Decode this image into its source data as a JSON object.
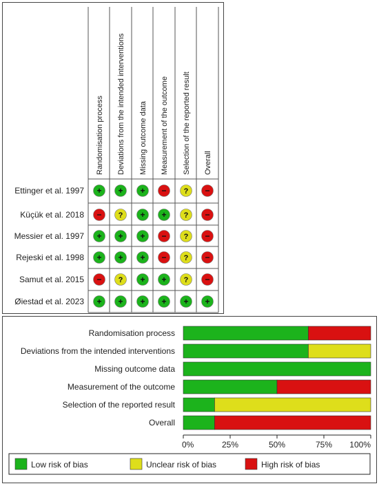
{
  "chart_data": [
    {
      "type": "table",
      "title": "",
      "domains": [
        "Randomisation process",
        "Deviations from the intended interventions",
        "Missing outcome data",
        "Measurement of the outcome",
        "Selection of the reported result",
        "Overall"
      ],
      "studies": [
        {
          "name": "Ettinger et al. 1997",
          "judgements": [
            "low",
            "low",
            "low",
            "high",
            "unclear",
            "high"
          ]
        },
        {
          "name": "Küçük et al. 2018",
          "judgements": [
            "high",
            "unclear",
            "low",
            "low",
            "unclear",
            "high"
          ]
        },
        {
          "name": "Messier et al. 1997",
          "judgements": [
            "low",
            "low",
            "low",
            "high",
            "unclear",
            "high"
          ]
        },
        {
          "name": "Rejeski et al. 1998",
          "judgements": [
            "low",
            "low",
            "low",
            "high",
            "unclear",
            "high"
          ]
        },
        {
          "name": "Samut et al. 2015",
          "judgements": [
            "high",
            "unclear",
            "low",
            "low",
            "unclear",
            "high"
          ]
        },
        {
          "name": "Øiestad et al. 2023",
          "judgements": [
            "low",
            "low",
            "low",
            "low",
            "low",
            "low"
          ]
        }
      ],
      "symbols": {
        "low": "+",
        "unclear": "?",
        "high": "−"
      }
    },
    {
      "type": "bar",
      "stacked": true,
      "orientation": "horizontal",
      "categories": [
        "Randomisation process",
        "Deviations from the intended interventions",
        "Missing outcome data",
        "Measurement of the outcome",
        "Selection of the reported result",
        "Overall"
      ],
      "series": [
        {
          "name": "Low risk of bias",
          "values": [
            66.7,
            66.7,
            100,
            50,
            16.7,
            16.7
          ]
        },
        {
          "name": "Unclear risk of bias",
          "values": [
            0,
            33.3,
            0,
            0,
            83.3,
            0
          ]
        },
        {
          "name": "High risk of bias",
          "values": [
            33.3,
            0,
            0,
            50,
            0,
            83.3
          ]
        }
      ],
      "xlim": [
        0,
        100
      ],
      "xticks": [
        "0%",
        "25%",
        "50%",
        "75%",
        "100%"
      ],
      "legend_position": "bottom"
    }
  ],
  "colors": {
    "low": "#1cb31c",
    "unclear": "#dede1b",
    "high": "#d91111"
  }
}
